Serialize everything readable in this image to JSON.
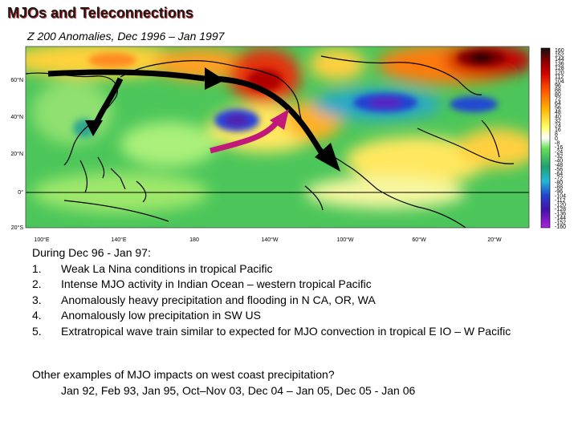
{
  "slide": {
    "title": "MJOs and Teleconnections",
    "subtitle": "Z 200 Anomalies, Dec 1996 – Jan 1997"
  },
  "map": {
    "lat_labels": [
      "60°N",
      "40°N",
      "20°N",
      "0°",
      "20°S"
    ],
    "lon_labels": [
      "100°E",
      "140°E",
      "180",
      "140°W",
      "100°W",
      "60°W",
      "20°W"
    ],
    "colorbar_labels": [
      "160",
      "152",
      "144",
      "136",
      "128",
      "120",
      "112",
      "104",
      "96",
      "88",
      "80",
      "72",
      "64",
      "56",
      "48",
      "40",
      "32",
      "24",
      "16",
      "8",
      "0",
      "-8",
      "-16",
      "-24",
      "-32",
      "-40",
      "-48",
      "-56",
      "-64",
      "-72",
      "-80",
      "-88",
      "-96",
      "-104",
      "-112",
      "-120",
      "-128",
      "-136",
      "-144",
      "-152",
      "-160"
    ],
    "arrow_colors": {
      "wave_train": "#000000",
      "mjo": "#c2187a"
    }
  },
  "notes": {
    "heading": "During Dec 96 - Jan 97:",
    "items": [
      {
        "num": "1.",
        "text": "Weak La Nina conditions in tropical Pacific"
      },
      {
        "num": "2.",
        "text": "Intense MJO activity in Indian Ocean – western tropical Pacific"
      },
      {
        "num": "3.",
        "text": "Anomalously heavy precipitation and flooding in N CA, OR, WA"
      },
      {
        "num": "4.",
        "text": "Anomalously low precipitation in SW US"
      },
      {
        "num": "5.",
        "text": "Extratropical wave train similar to expected for MJO convection in tropical E IO – W Pacific"
      }
    ],
    "question": "Other examples of MJO impacts on west coast precipitation?",
    "examples": "Jan 92, Feb 93, Jan 95, Oct–Nov 03, Dec 04 – Jan 05, Dec 05 - Jan 06"
  }
}
